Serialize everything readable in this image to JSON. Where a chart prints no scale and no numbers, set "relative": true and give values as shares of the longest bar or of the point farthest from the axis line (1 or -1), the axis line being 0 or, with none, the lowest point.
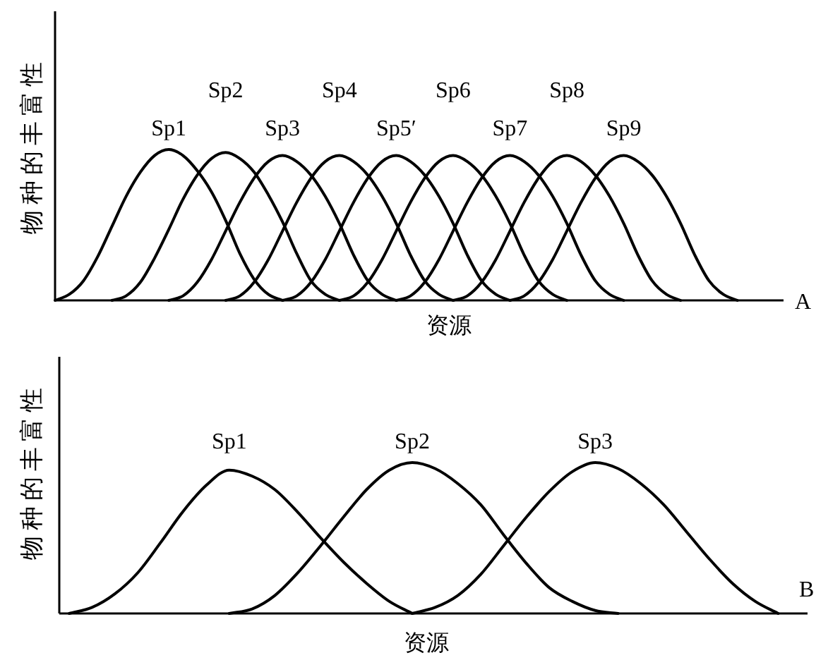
{
  "chart_data": [
    {
      "type": "line",
      "relative": true,
      "xlabel": "资源",
      "ylabel": "物种的丰富性",
      "annotations": [
        "A"
      ],
      "categories": [
        null,
        null,
        null,
        null,
        null,
        null,
        null,
        null,
        null,
        null,
        null,
        null,
        null,
        null,
        null,
        null,
        null,
        null,
        null,
        null,
        null,
        null,
        null,
        null,
        null,
        null,
        null,
        null,
        null,
        null,
        null,
        null,
        null,
        null,
        null,
        null,
        null,
        null,
        null,
        null,
        null,
        null,
        null,
        null,
        null,
        null,
        null,
        null,
        null
      ],
      "series": [
        {
          "name": "Sp1",
          "color": "#000000",
          "values": [
            0,
            0.04,
            0.13,
            0.29,
            0.49,
            0.69,
            0.85,
            0.96,
            1,
            0.96,
            0.86,
            0.72,
            0.53,
            0.31,
            0.14,
            0.04,
            0,
            null,
            null,
            null,
            null,
            null,
            null,
            null,
            null,
            null,
            null,
            null,
            null,
            null,
            null,
            null,
            null,
            null,
            null,
            null,
            null,
            null,
            null,
            null,
            null,
            null,
            null,
            null,
            null,
            null,
            null,
            null,
            null
          ]
        },
        {
          "name": "Sp2",
          "color": "#000000",
          "values": [
            null,
            null,
            null,
            null,
            0,
            0.03,
            0.12,
            0.28,
            0.47,
            0.67,
            0.83,
            0.94,
            0.98,
            0.94,
            0.85,
            0.7,
            0.52,
            0.31,
            0.13,
            0.04,
            0,
            null,
            null,
            null,
            null,
            null,
            null,
            null,
            null,
            null,
            null,
            null,
            null,
            null,
            null,
            null,
            null,
            null,
            null,
            null,
            null,
            null,
            null,
            null,
            null,
            null,
            null,
            null,
            null
          ]
        },
        {
          "name": "Sp3",
          "color": "#000000",
          "values": [
            null,
            null,
            null,
            null,
            null,
            null,
            null,
            null,
            0,
            0.03,
            0.12,
            0.27,
            0.46,
            0.65,
            0.81,
            0.92,
            0.96,
            0.92,
            0.83,
            0.69,
            0.51,
            0.3,
            0.13,
            0.04,
            0,
            null,
            null,
            null,
            null,
            null,
            null,
            null,
            null,
            null,
            null,
            null,
            null,
            null,
            null,
            null,
            null,
            null,
            null,
            null,
            null,
            null,
            null,
            null,
            null
          ]
        },
        {
          "name": "Sp4",
          "color": "#000000",
          "values": [
            null,
            null,
            null,
            null,
            null,
            null,
            null,
            null,
            null,
            null,
            null,
            null,
            0,
            0.03,
            0.12,
            0.27,
            0.46,
            0.65,
            0.81,
            0.92,
            0.96,
            0.92,
            0.83,
            0.69,
            0.51,
            0.3,
            0.13,
            0.04,
            0,
            null,
            null,
            null,
            null,
            null,
            null,
            null,
            null,
            null,
            null,
            null,
            null,
            null,
            null,
            null,
            null,
            null,
            null,
            null,
            null
          ]
        },
        {
          "name": "Sp5′",
          "color": "#000000",
          "values": [
            null,
            null,
            null,
            null,
            null,
            null,
            null,
            null,
            null,
            null,
            null,
            null,
            null,
            null,
            null,
            null,
            0,
            0.03,
            0.12,
            0.27,
            0.46,
            0.65,
            0.81,
            0.92,
            0.96,
            0.92,
            0.83,
            0.69,
            0.51,
            0.3,
            0.13,
            0.04,
            0,
            null,
            null,
            null,
            null,
            null,
            null,
            null,
            null,
            null,
            null,
            null,
            null,
            null,
            null,
            null,
            null
          ]
        },
        {
          "name": "Sp6",
          "color": "#000000",
          "values": [
            null,
            null,
            null,
            null,
            null,
            null,
            null,
            null,
            null,
            null,
            null,
            null,
            null,
            null,
            null,
            null,
            null,
            null,
            null,
            null,
            0,
            0.03,
            0.12,
            0.27,
            0.46,
            0.65,
            0.81,
            0.92,
            0.96,
            0.92,
            0.83,
            0.69,
            0.51,
            0.3,
            0.13,
            0.04,
            0,
            null,
            null,
            null,
            null,
            null,
            null,
            null,
            null,
            null,
            null,
            null,
            null
          ]
        },
        {
          "name": "Sp7",
          "color": "#000000",
          "values": [
            null,
            null,
            null,
            null,
            null,
            null,
            null,
            null,
            null,
            null,
            null,
            null,
            null,
            null,
            null,
            null,
            null,
            null,
            null,
            null,
            null,
            null,
            null,
            null,
            0,
            0.03,
            0.12,
            0.27,
            0.46,
            0.65,
            0.81,
            0.92,
            0.96,
            0.92,
            0.83,
            0.69,
            0.51,
            0.3,
            0.13,
            0.04,
            0,
            null,
            null,
            null,
            null,
            null,
            null,
            null,
            null
          ]
        },
        {
          "name": "Sp8",
          "color": "#000000",
          "values": [
            null,
            null,
            null,
            null,
            null,
            null,
            null,
            null,
            null,
            null,
            null,
            null,
            null,
            null,
            null,
            null,
            null,
            null,
            null,
            null,
            null,
            null,
            null,
            null,
            null,
            null,
            null,
            null,
            0,
            0.03,
            0.12,
            0.27,
            0.46,
            0.65,
            0.81,
            0.92,
            0.96,
            0.92,
            0.83,
            0.69,
            0.51,
            0.3,
            0.13,
            0.04,
            0,
            null,
            null,
            null,
            null
          ]
        },
        {
          "name": "Sp9",
          "color": "#000000",
          "values": [
            null,
            null,
            null,
            null,
            null,
            null,
            null,
            null,
            null,
            null,
            null,
            null,
            null,
            null,
            null,
            null,
            null,
            null,
            null,
            null,
            null,
            null,
            null,
            null,
            null,
            null,
            null,
            null,
            null,
            null,
            null,
            null,
            0,
            0.03,
            0.12,
            0.27,
            0.46,
            0.65,
            0.81,
            0.92,
            0.96,
            0.92,
            0.83,
            0.69,
            0.51,
            0.3,
            0.13,
            0.04,
            0
          ]
        }
      ]
    },
    {
      "type": "line",
      "relative": true,
      "xlabel": "资源",
      "ylabel": "物种的丰富性",
      "annotations": [
        "B"
      ],
      "categories": [
        null,
        null,
        null,
        null,
        null,
        null,
        null,
        null,
        null,
        null,
        null,
        null,
        null,
        null,
        null,
        null,
        null,
        null,
        null,
        null,
        null,
        null,
        null,
        null,
        null,
        null,
        null,
        null,
        null,
        null,
        null,
        null
      ],
      "series": [
        {
          "name": "Sp1",
          "color": "#000000",
          "values": [
            0,
            0.04,
            0.13,
            0.27,
            0.47,
            0.68,
            0.85,
            0.95,
            0.91,
            0.82,
            0.67,
            0.5,
            0.34,
            0.2,
            0.08,
            0,
            null,
            null,
            null,
            null,
            null,
            null,
            null,
            null,
            null,
            null,
            null,
            null,
            null,
            null,
            null,
            null
          ]
        },
        {
          "name": "Sp2",
          "color": "#000000",
          "values": [
            null,
            null,
            null,
            null,
            null,
            null,
            null,
            0,
            0.03,
            0.12,
            0.27,
            0.45,
            0.64,
            0.82,
            0.95,
            1,
            0.96,
            0.86,
            0.72,
            0.52,
            0.33,
            0.17,
            0.08,
            0.02,
            0,
            null,
            null,
            null,
            null,
            null,
            null,
            null
          ]
        },
        {
          "name": "Sp3",
          "color": "#000000",
          "values": [
            null,
            null,
            null,
            null,
            null,
            null,
            null,
            null,
            null,
            null,
            null,
            null,
            null,
            null,
            null,
            0,
            0.04,
            0.12,
            0.26,
            0.45,
            0.64,
            0.81,
            0.94,
            1,
            0.96,
            0.86,
            0.72,
            0.54,
            0.36,
            0.2,
            0.08,
            0
          ]
        }
      ]
    }
  ]
}
